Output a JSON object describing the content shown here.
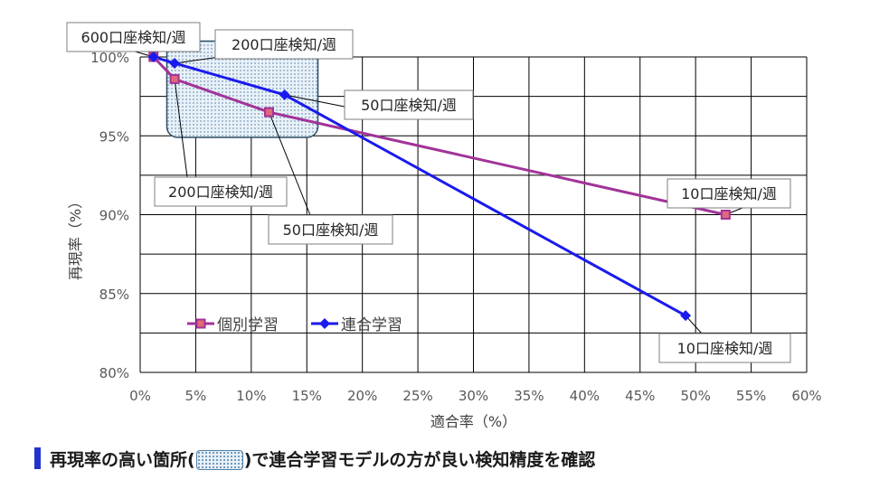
{
  "chart_data": {
    "type": "line",
    "xlabel": "適合率（%）",
    "ylabel": "再現率（%）",
    "xlim": [
      0,
      60
    ],
    "ylim": [
      80,
      100
    ],
    "x_ticks": [
      "0%",
      "5%",
      "10%",
      "15%",
      "20%",
      "25%",
      "30%",
      "35%",
      "40%",
      "45%",
      "50%",
      "55%",
      "60%"
    ],
    "y_ticks": [
      "80%",
      "85%",
      "90%",
      "95%",
      "100%"
    ],
    "grid": true,
    "legend_position": "lower-left",
    "series": [
      {
        "name": "個別学習",
        "color": "#a23399",
        "marker": "square",
        "points": [
          {
            "x": 1.2,
            "y": 100.0
          },
          {
            "x": 3.1,
            "y": 98.6
          },
          {
            "x": 11.6,
            "y": 96.5
          },
          {
            "x": 52.7,
            "y": 90.0
          }
        ]
      },
      {
        "name": "連合学習",
        "color": "#1a1aee",
        "marker": "diamond",
        "points": [
          {
            "x": 1.2,
            "y": 100.0
          },
          {
            "x": 3.1,
            "y": 99.6
          },
          {
            "x": 13.0,
            "y": 97.6
          },
          {
            "x": 49.1,
            "y": 83.6
          }
        ]
      }
    ],
    "annotations": [
      {
        "text": "600口座検知/週"
      },
      {
        "text": "200口座検知/週"
      },
      {
        "text": "50口座検知/週"
      },
      {
        "text": "200口座検知/週"
      },
      {
        "text": "50口座検知/週"
      },
      {
        "text": "10口座検知/週"
      },
      {
        "text": "10口座検知/週"
      }
    ]
  },
  "caption": {
    "before": "再現率の高い箇所(",
    "after": ")で連合学習モデルの方が良い検知精度を確認"
  }
}
